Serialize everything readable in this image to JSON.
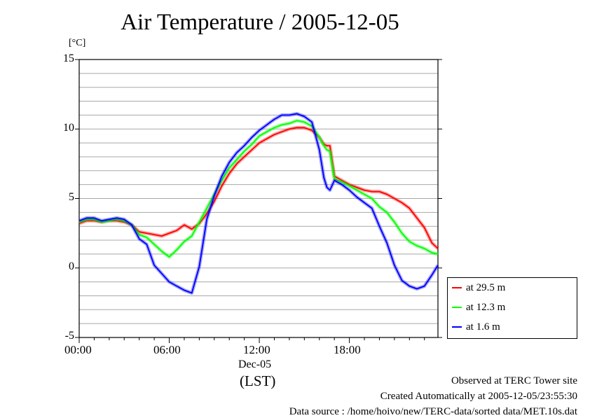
{
  "colors": {
    "series_29_5": "#ff0000",
    "series_12_3": "#00ff00",
    "series_1_6": "#0000ff"
  },
  "chart_data": {
    "type": "line",
    "title": "Air Temperature / 2005-12-05",
    "ylabel": "[°C]",
    "ylim": [
      -5,
      15
    ],
    "xlim": [
      0,
      23.9
    ],
    "grid": "horizontal",
    "legend_position": "right",
    "y_ticks": [
      "15",
      "10",
      "5",
      "0",
      "-5"
    ],
    "x_ticks": [
      "00:00",
      "06:00",
      "12:00",
      "18:00"
    ],
    "x_sublabel": "Dec-05",
    "x_unit": "(LST)",
    "series": [
      {
        "name": "at 29.5 m",
        "color": "#ff0000",
        "x": [
          0,
          0.5,
          1,
          1.5,
          2,
          2.5,
          3,
          3.5,
          4,
          4.5,
          5,
          5.5,
          6,
          6.5,
          7,
          7.5,
          8,
          8.5,
          9,
          9.5,
          10,
          10.5,
          11,
          11.5,
          12,
          12.5,
          13,
          13.5,
          14,
          14.5,
          15,
          15.5,
          16,
          16.3,
          16.5,
          16.7,
          17,
          17.5,
          18,
          18.5,
          19,
          19.5,
          20,
          20.5,
          21,
          21.5,
          22,
          22.5,
          23,
          23.5,
          23.9
        ],
        "y": [
          3.2,
          3.4,
          3.4,
          3.3,
          3.4,
          3.4,
          3.3,
          3.1,
          2.6,
          2.5,
          2.4,
          2.3,
          2.5,
          2.7,
          3.1,
          2.8,
          3.2,
          3.9,
          4.8,
          5.9,
          6.8,
          7.5,
          8.0,
          8.5,
          9.0,
          9.3,
          9.6,
          9.8,
          10.0,
          10.1,
          10.1,
          9.9,
          9.4,
          8.9,
          8.8,
          8.8,
          6.6,
          6.3,
          6.0,
          5.8,
          5.6,
          5.5,
          5.5,
          5.3,
          5.0,
          4.7,
          4.3,
          3.6,
          2.9,
          1.8,
          1.4
        ]
      },
      {
        "name": "at 12.3 m",
        "color": "#00ff00",
        "x": [
          0,
          0.5,
          1,
          1.5,
          2,
          2.5,
          3,
          3.5,
          4,
          4.5,
          5,
          5.5,
          6,
          6.5,
          7,
          7.5,
          8,
          8.5,
          9,
          9.5,
          10,
          10.5,
          11,
          11.5,
          12,
          12.5,
          13,
          13.5,
          14,
          14.5,
          15,
          15.5,
          16,
          16.3,
          16.5,
          16.7,
          17,
          17.5,
          18,
          18.5,
          19,
          19.5,
          20,
          20.5,
          21,
          21.5,
          22,
          22.5,
          23,
          23.5,
          23.9
        ],
        "y": [
          3.3,
          3.5,
          3.5,
          3.3,
          3.4,
          3.5,
          3.4,
          3.1,
          2.4,
          2.2,
          1.7,
          1.2,
          0.8,
          1.3,
          1.9,
          2.3,
          3.3,
          4.3,
          5.3,
          6.3,
          7.2,
          7.8,
          8.4,
          8.9,
          9.5,
          9.8,
          10.1,
          10.3,
          10.4,
          10.6,
          10.5,
          10.2,
          9.4,
          8.8,
          8.5,
          8.4,
          6.4,
          6.2,
          5.9,
          5.6,
          5.3,
          5.0,
          4.4,
          4.0,
          3.3,
          2.5,
          1.9,
          1.6,
          1.4,
          1.1,
          1.0
        ]
      },
      {
        "name": "at 1.6 m",
        "color": "#0000ff",
        "x": [
          0,
          0.5,
          1,
          1.5,
          2,
          2.5,
          3,
          3.5,
          4,
          4.5,
          5,
          5.5,
          6,
          6.5,
          7,
          7.5,
          8,
          8.5,
          9,
          9.5,
          10,
          10.5,
          11,
          11.5,
          12,
          12.5,
          13,
          13.5,
          14,
          14.5,
          15,
          15.5,
          16,
          16.3,
          16.5,
          16.7,
          17,
          17.5,
          18,
          18.5,
          19,
          19.5,
          20,
          20.5,
          21,
          21.5,
          22,
          22.5,
          23,
          23.5,
          23.9
        ],
        "y": [
          3.4,
          3.6,
          3.6,
          3.4,
          3.5,
          3.6,
          3.5,
          3.1,
          2.1,
          1.7,
          0.2,
          -0.4,
          -1.0,
          -1.3,
          -1.6,
          -1.8,
          0.1,
          3.5,
          5.2,
          6.6,
          7.6,
          8.3,
          8.8,
          9.4,
          9.9,
          10.3,
          10.7,
          11.0,
          11.0,
          11.1,
          10.9,
          10.5,
          8.5,
          6.5,
          5.8,
          5.6,
          6.3,
          6.0,
          5.6,
          5.1,
          4.7,
          4.3,
          3.0,
          1.8,
          0.2,
          -0.9,
          -1.3,
          -1.5,
          -1.3,
          -0.5,
          0.2
        ]
      }
    ]
  },
  "footer": {
    "line1": "Observed at TERC Tower site",
    "line2": "Created Automatically at 2005-12-05/23:55:30",
    "line3": "Data source : /home/hoivo/new/TERC-data/sorted  data/MET.10s.dat"
  }
}
